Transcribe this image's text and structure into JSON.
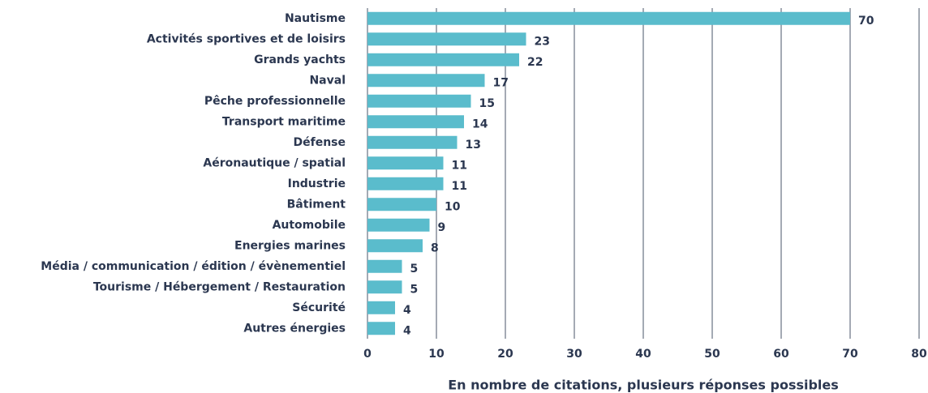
{
  "chart_data": {
    "type": "bar",
    "orientation": "horizontal",
    "x_label": "En nombre de citations, plusieurs réponses possibles",
    "categories": [
      "Nautisme",
      "Activités sportives et de loisirs",
      "Grands yachts",
      "Naval",
      "Pêche professionnelle",
      "Transport maritime",
      "Défense",
      "Aéronautique / spatial",
      "Industrie",
      "Bâtiment",
      "Automobile",
      "Energies marines",
      "Média / communication / édition / évènementiel",
      "Tourisme / Hébergement / Restauration",
      "Sécurité",
      "Autres énergies"
    ],
    "values": [
      70,
      23,
      22,
      17,
      15,
      14,
      13,
      11,
      11,
      10,
      9,
      8,
      5,
      5,
      4,
      4
    ],
    "color": "#5abccc",
    "xlim": [
      0,
      80
    ],
    "xticks": [
      0,
      10,
      20,
      30,
      40,
      50,
      60,
      70,
      80
    ],
    "grid": true
  }
}
